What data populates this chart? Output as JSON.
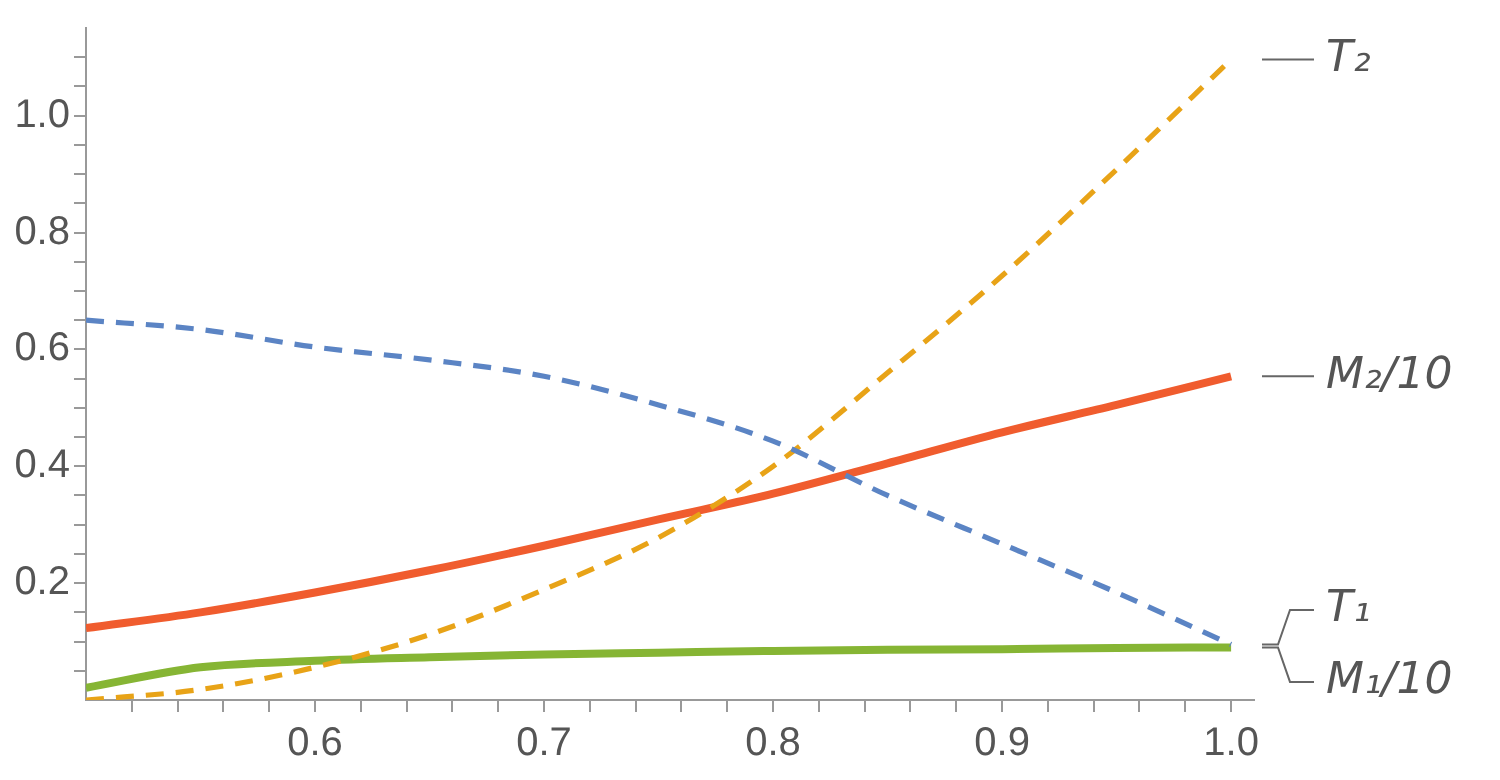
{
  "chart_data": {
    "type": "line",
    "xlim": [
      0.5,
      1.01
    ],
    "ylim": [
      0,
      1.15
    ],
    "xticks": [
      {
        "value": 0.52,
        "label": null
      },
      {
        "value": 0.54,
        "label": null
      },
      {
        "value": 0.56,
        "label": null
      },
      {
        "value": 0.58,
        "label": null
      },
      0.6,
      {
        "value": 0.62,
        "label": null
      },
      {
        "value": 0.64,
        "label": null
      },
      {
        "value": 0.66,
        "label": null
      },
      {
        "value": 0.68,
        "label": null
      },
      0.7,
      {
        "value": 0.72,
        "label": null
      },
      {
        "value": 0.74,
        "label": null
      },
      {
        "value": 0.76,
        "label": null
      },
      {
        "value": 0.78,
        "label": null
      },
      0.8,
      {
        "value": 0.82,
        "label": null
      },
      {
        "value": 0.84,
        "label": null
      },
      {
        "value": 0.86,
        "label": null
      },
      {
        "value": 0.88,
        "label": null
      },
      0.9,
      {
        "value": 0.92,
        "label": null
      },
      {
        "value": 0.94,
        "label": null
      },
      {
        "value": 0.96,
        "label": null
      },
      {
        "value": 0.98,
        "label": null
      },
      {
        "value": 1,
        "label": "1.0"
      }
    ],
    "yticks": [
      {
        "value": 0.05,
        "label": null
      },
      {
        "value": 0.1,
        "label": null
      },
      {
        "value": 0.15,
        "label": null
      },
      0.2,
      {
        "value": 0.25,
        "label": null
      },
      {
        "value": 0.3,
        "label": null
      },
      {
        "value": 0.35,
        "label": null
      },
      0.4,
      {
        "value": 0.45,
        "label": null
      },
      {
        "value": 0.5,
        "label": null
      },
      {
        "value": 0.55,
        "label": null
      },
      0.6,
      {
        "value": 0.65,
        "label": null
      },
      {
        "value": 0.7,
        "label": null
      },
      {
        "value": 0.75,
        "label": null
      },
      0.8,
      {
        "value": 0.85,
        "label": null
      },
      {
        "value": 0.9,
        "label": null
      },
      {
        "value": 0.95,
        "label": null
      },
      {
        "value": 1,
        "label": "1.0"
      },
      {
        "value": 1.05,
        "label": null
      },
      {
        "value": 1.1,
        "label": null
      }
    ],
    "grid": false,
    "legend": false,
    "marker": "none",
    "x": [
      0.5,
      0.55,
      0.6,
      0.65,
      0.7,
      0.75,
      0.8,
      0.85,
      0.9,
      0.95,
      1.0
    ],
    "series": [
      {
        "name": "T₁",
        "color": "#5b84c4",
        "line_style": "dashed",
        "values": [
          0.65,
          0.634,
          0.604,
          0.582,
          0.554,
          0.505,
          0.443,
          0.35,
          0.267,
          0.184,
          0.095
        ]
      },
      {
        "name": "T₂",
        "color": "#e8a317",
        "line_style": "dashed",
        "values": [
          0,
          0.018,
          0.056,
          0.112,
          0.189,
          0.278,
          0.4,
          0.56,
          0.726,
          0.908,
          1.096
        ]
      },
      {
        "name": "M₁/10",
        "color": "#86b534",
        "line_style": "solid",
        "values": [
          0.021,
          0.056,
          0.067,
          0.073,
          0.078,
          0.081,
          0.084,
          0.086,
          0.087,
          0.089,
          0.09
        ]
      },
      {
        "name": "M₂/10",
        "color": "#f05c2e",
        "line_style": "solid",
        "values": [
          0.123,
          0.15,
          0.184,
          0.222,
          0.264,
          0.309,
          0.353,
          0.405,
          0.458,
          0.505,
          0.554
        ]
      }
    ]
  }
}
